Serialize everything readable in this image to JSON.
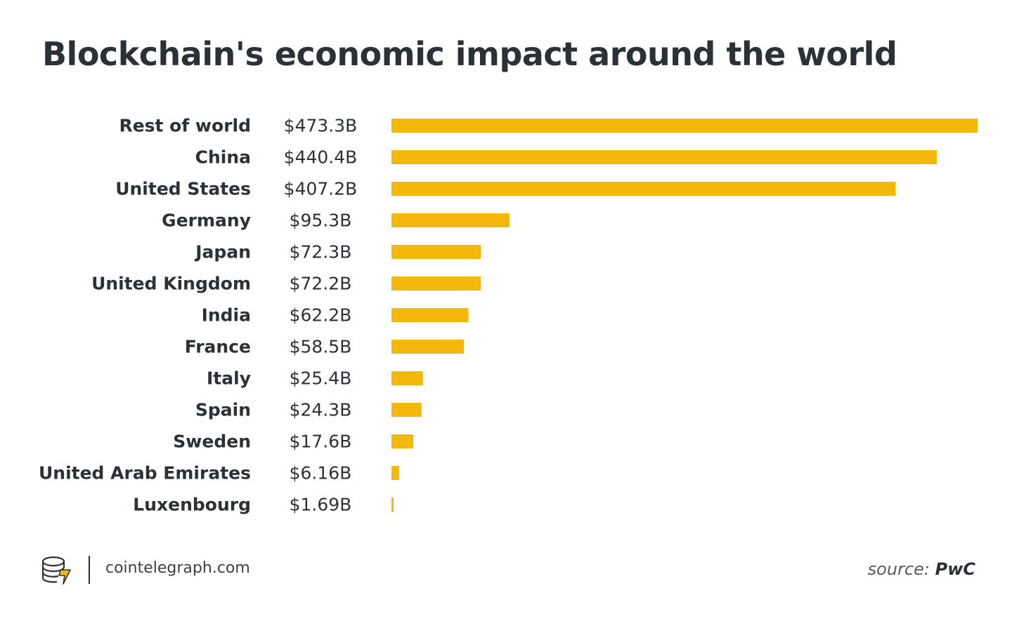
{
  "title": "Blockchain's economic impact around the world",
  "colors": {
    "bar": "#f4b70c",
    "text": "#2b3237"
  },
  "chart_data": {
    "type": "bar",
    "orientation": "horizontal",
    "title": "Blockchain's economic impact around the world",
    "xlabel": "",
    "ylabel": "",
    "unit": "billion USD",
    "categories": [
      "Rest of world",
      "China",
      "United States",
      "Germany",
      "Japan",
      "United Kingdom",
      "India",
      "France",
      "Italy",
      "Spain",
      "Sweden",
      "United Arab Emirates",
      "Luxenbourg"
    ],
    "values": [
      473.3,
      440.4,
      407.2,
      95.3,
      72.3,
      72.2,
      62.2,
      58.5,
      25.4,
      24.3,
      17.6,
      6.16,
      1.69
    ],
    "value_labels": [
      "$473.3B",
      "$440.4B",
      "$407.2B",
      "$95.3B",
      "$72.3B",
      "$72.2B",
      "$62.2B",
      "$58.5B",
      "$25.4B",
      "$24.3B",
      "$17.6B",
      "$6.16B",
      "$1.69B"
    ],
    "xlim": [
      0,
      473.3
    ],
    "grid": false
  },
  "footer": {
    "logo_icon": "cointelegraph-logo-icon",
    "site": "cointelegraph.com",
    "source_prefix": "source:",
    "source_name": "PwC"
  }
}
